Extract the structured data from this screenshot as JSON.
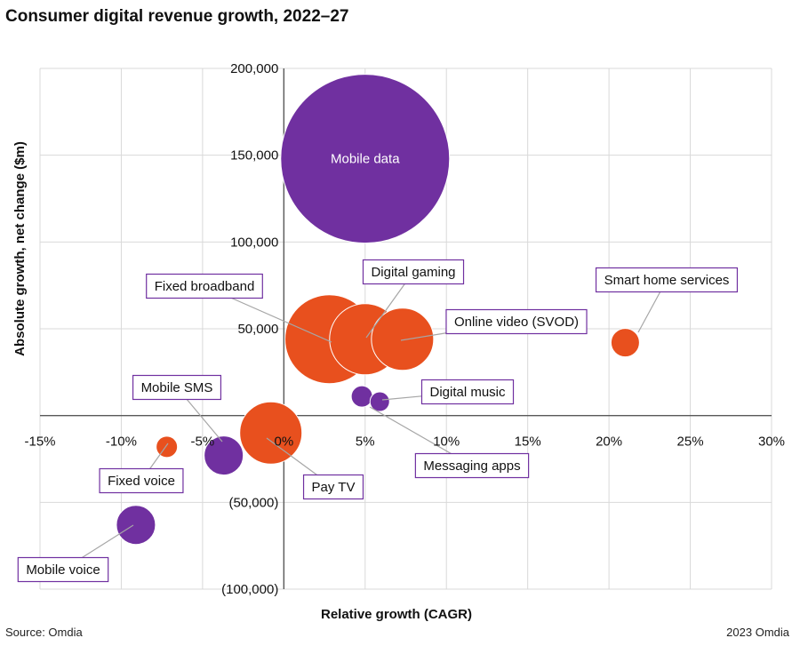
{
  "title": "Consumer digital revenue growth, 2022–27",
  "footer": {
    "source": "Source: Omdia",
    "credit": "2023 Omdia"
  },
  "colors": {
    "purple": "#7030a0",
    "orange": "#e8501e",
    "grid": "#d9d9d9",
    "axis": "#595959",
    "label_border": "#7030a0"
  },
  "chart_data": {
    "type": "scatter",
    "variant": "bubble",
    "title": "Consumer digital revenue growth, 2022–27",
    "xlabel": "Relative growth (CAGR)",
    "ylabel": "Absolute growth, net change ($m)",
    "xlim": [
      -15,
      30
    ],
    "ylim": [
      -100000,
      200000
    ],
    "xticks": [
      -15,
      -10,
      -5,
      0,
      5,
      10,
      15,
      20,
      25,
      30
    ],
    "xtick_labels": [
      "-15%",
      "-10%",
      "-5%",
      "0%",
      "5%",
      "10%",
      "15%",
      "20%",
      "25%",
      "30%"
    ],
    "yticks": [
      -100000,
      -50000,
      0,
      50000,
      100000,
      150000,
      200000
    ],
    "ytick_labels": [
      "(100,000)",
      "(50,000)",
      "",
      "50,000",
      "100,000",
      "150,000",
      "200,000"
    ],
    "grid": true,
    "series": [
      {
        "name": "Mobile data",
        "x": 5,
        "y": 148000,
        "size": 190,
        "color": "purple",
        "label_inside": true
      },
      {
        "name": "Fixed broadband",
        "x": 2.8,
        "y": 44000,
        "size": 100,
        "color": "orange"
      },
      {
        "name": "Digital gaming",
        "x": 5,
        "y": 44000,
        "size": 80,
        "color": "orange"
      },
      {
        "name": "Online video (SVOD)",
        "x": 7.3,
        "y": 44000,
        "size": 70,
        "color": "orange"
      },
      {
        "name": "Smart home services",
        "x": 21,
        "y": 42000,
        "size": 32,
        "color": "orange"
      },
      {
        "name": "Digital music",
        "x": 4.8,
        "y": 11000,
        "size": 24,
        "color": "purple"
      },
      {
        "name": "Messaging apps",
        "x": 5.9,
        "y": 8000,
        "size": 22,
        "color": "purple"
      },
      {
        "name": "Pay TV",
        "x": -0.8,
        "y": -10000,
        "size": 70,
        "color": "orange"
      },
      {
        "name": "Mobile SMS",
        "x": -3.7,
        "y": -23000,
        "size": 44,
        "color": "purple"
      },
      {
        "name": "Fixed voice",
        "x": -7.2,
        "y": -18000,
        "size": 24,
        "color": "orange"
      },
      {
        "name": "Mobile voice",
        "x": -9.1,
        "y": -63000,
        "size": 44,
        "color": "purple"
      }
    ]
  }
}
